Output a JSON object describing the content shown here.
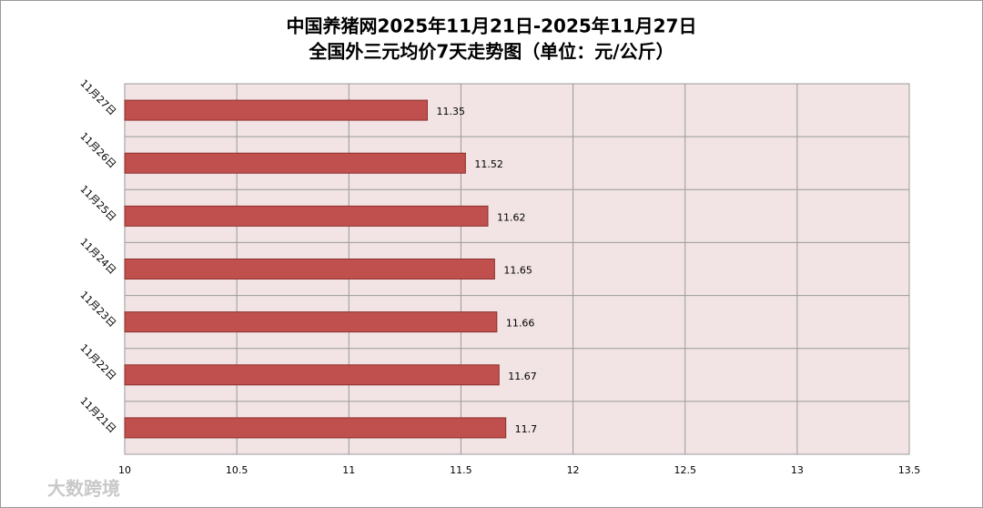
{
  "chart_data": {
    "type": "hbar",
    "title": "中国养猪网2025年11月21日-2025年11月27日",
    "subtitle": "全国外三元均价7天走势图（单位：元/公斤）",
    "categories": [
      "11月21日",
      "11月22日",
      "11月23日",
      "11月24日",
      "11月25日",
      "11月26日",
      "11月27日"
    ],
    "values": [
      11.7,
      11.67,
      11.66,
      11.65,
      11.62,
      11.52,
      11.35
    ],
    "color": "#c0504d",
    "xlim": [
      10,
      13.5
    ],
    "xticks": [
      10,
      10.5,
      11,
      11.5,
      12,
      12.5,
      13,
      13.5
    ],
    "grid": true,
    "watermark": "大数跨境"
  }
}
